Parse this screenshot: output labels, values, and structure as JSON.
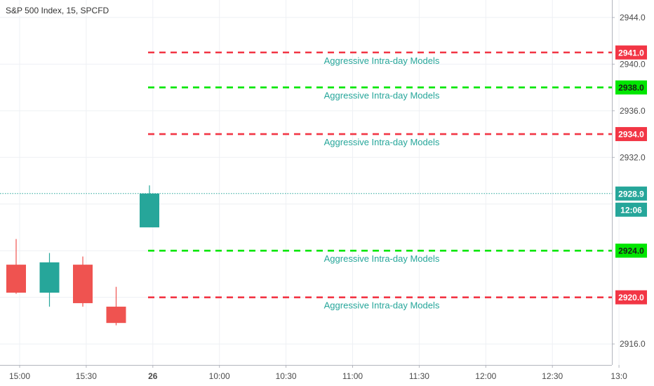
{
  "chart_data": {
    "type": "candlestick",
    "title": "S&P 500 Index, 15, SPCFD",
    "ylim": [
      2914.2,
      2945.5
    ],
    "y_ticks": [
      "2944.0",
      "2940.0",
      "2936.0",
      "2932.0",
      "2916.0"
    ],
    "x_ticks": [
      "15:00",
      "15:30",
      "26",
      "10:00",
      "10:30",
      "11:00",
      "11:30",
      "12:00",
      "12:30",
      "13:0"
    ],
    "candles": [
      {
        "slot": 0,
        "open": 2922.8,
        "high": 2925.0,
        "low": 2920.3,
        "close": 2920.4
      },
      {
        "slot": 1,
        "open": 2920.4,
        "high": 2923.8,
        "low": 2919.2,
        "close": 2923.0
      },
      {
        "slot": 2,
        "open": 2922.8,
        "high": 2923.5,
        "low": 2919.2,
        "close": 2919.5
      },
      {
        "slot": 3,
        "open": 2919.2,
        "high": 2920.9,
        "low": 2917.6,
        "close": 2917.8
      },
      {
        "slot": 4,
        "open": 2926.0,
        "high": 2929.6,
        "low": 2926.0,
        "close": 2928.9
      }
    ],
    "levels": [
      {
        "price": 2941.0,
        "label": "Aggressive Intra-day Models",
        "tag": "2941.0",
        "color": "#f23645",
        "text_color": "#ffffff"
      },
      {
        "price": 2938.0,
        "label": "Aggressive Intra-day Models",
        "tag": "2938.0",
        "color": "#00e600",
        "text_color": "#1a1a1a"
      },
      {
        "price": 2934.0,
        "label": "Aggressive Intra-day Models",
        "tag": "2934.0",
        "color": "#f23645",
        "text_color": "#ffffff"
      },
      {
        "price": 2924.0,
        "label": "Aggressive Intra-day Models",
        "tag": "2924.0",
        "color": "#00e600",
        "text_color": "#1a1a1a"
      },
      {
        "price": 2920.0,
        "label": "Aggressive Intra-day Models",
        "tag": "2920.0",
        "color": "#f23645",
        "text_color": "#ffffff"
      }
    ],
    "last_price": {
      "value": 2928.9,
      "tag": "2928.9",
      "countdown": "12:06",
      "color": "#26a69a"
    },
    "colors": {
      "up": "#26a69a",
      "down": "#ef5350",
      "model_text": "#26a69a",
      "grid": "#eef0f4",
      "axis": "#4a4a4a"
    }
  }
}
